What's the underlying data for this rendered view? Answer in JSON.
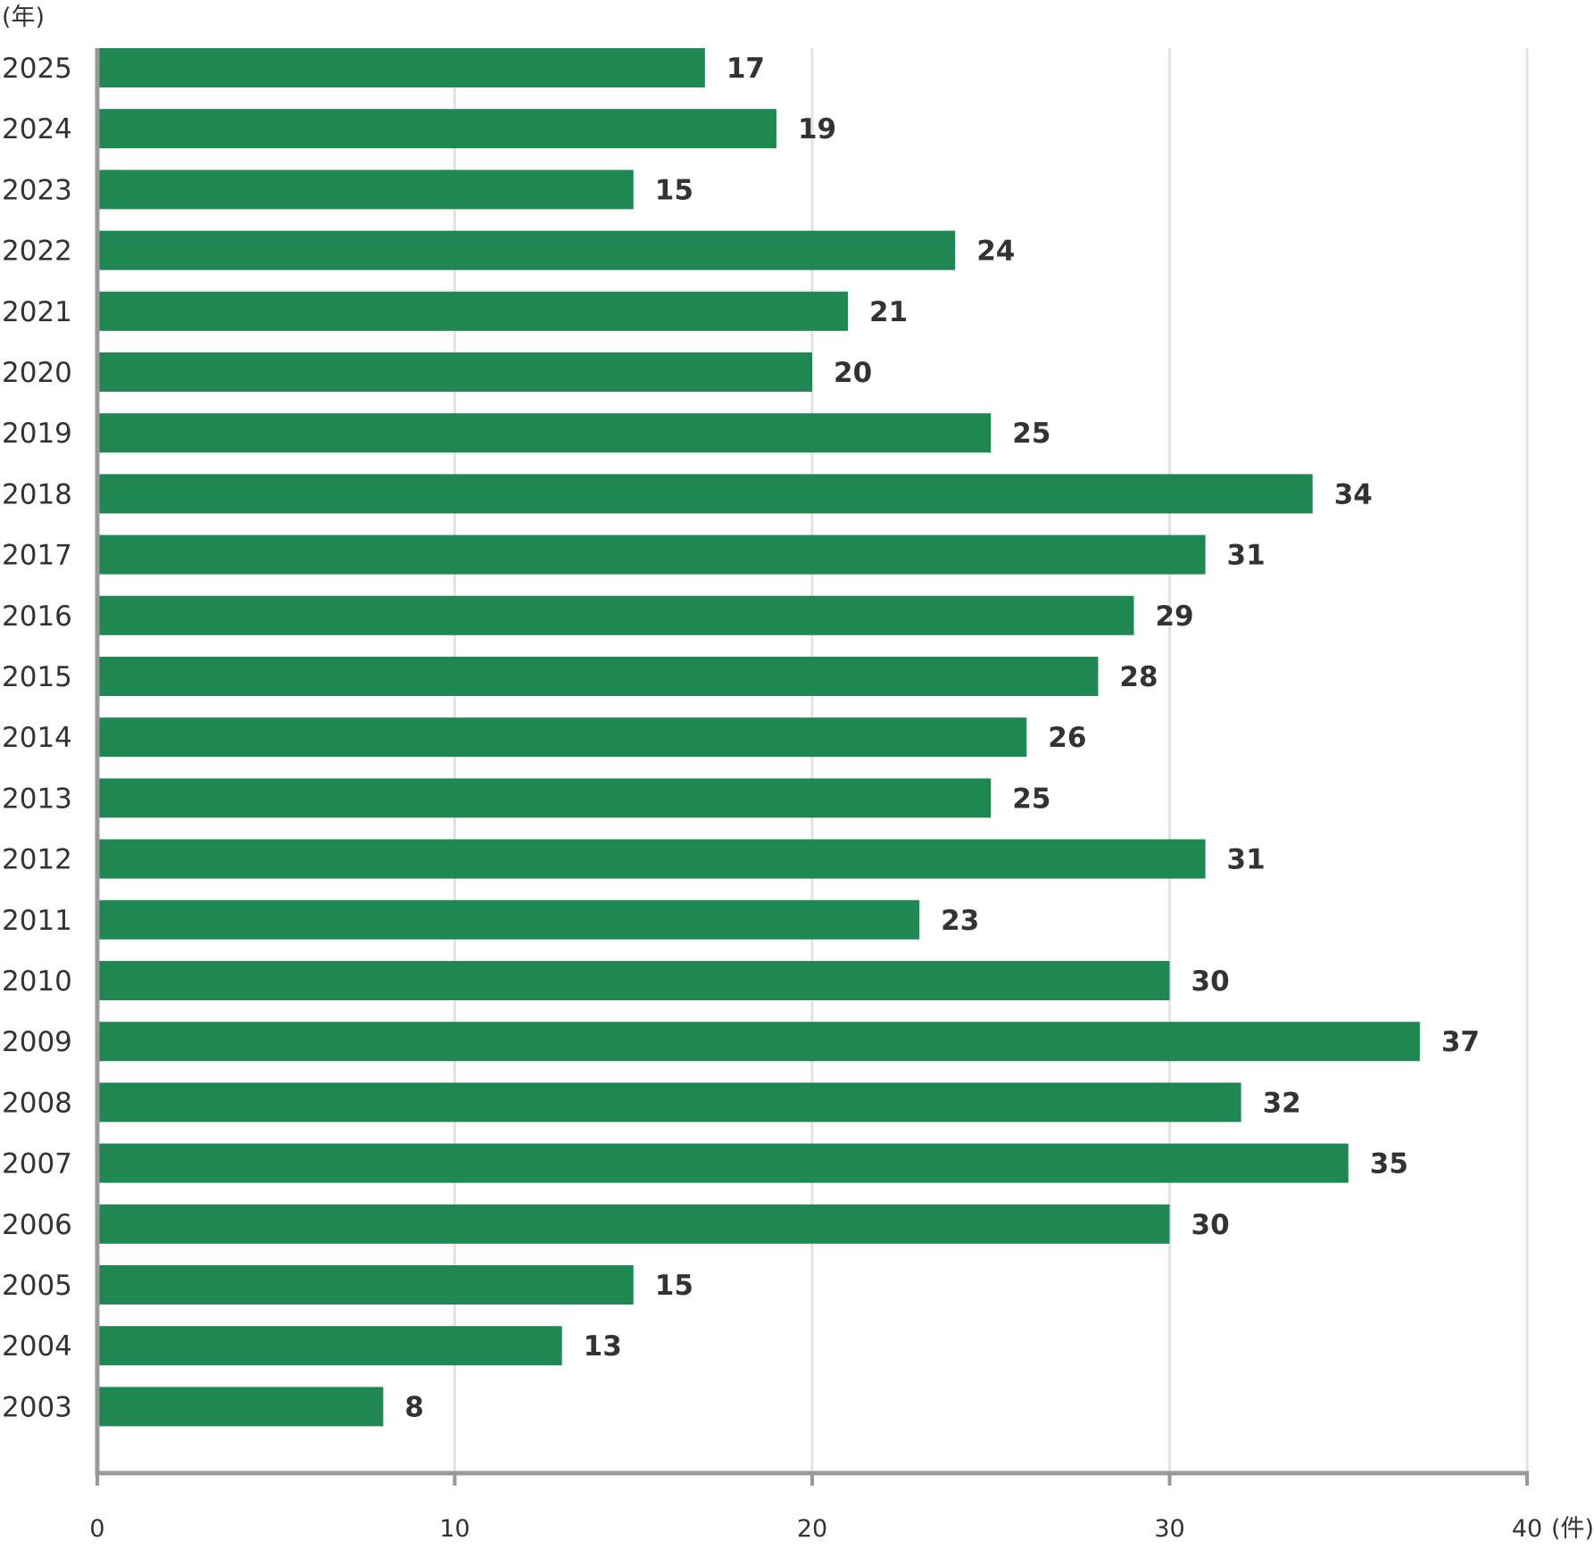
{
  "chart_data": {
    "type": "bar",
    "orientation": "horizontal",
    "y_unit_label": "(年)",
    "x_unit_label": "(件)",
    "categories": [
      "2025",
      "2024",
      "2023",
      "2022",
      "2021",
      "2020",
      "2019",
      "2018",
      "2017",
      "2016",
      "2015",
      "2014",
      "2013",
      "2012",
      "2011",
      "2010",
      "2009",
      "2008",
      "2007",
      "2006",
      "2005",
      "2004",
      "2003"
    ],
    "values": [
      17,
      19,
      15,
      24,
      21,
      20,
      25,
      34,
      31,
      29,
      28,
      26,
      25,
      31,
      23,
      30,
      37,
      32,
      35,
      30,
      15,
      13,
      8
    ],
    "value_labels": [
      "17",
      "19",
      "15",
      "24",
      "21",
      "20",
      "25",
      "34",
      "31",
      "29",
      "28",
      "26",
      "25",
      "31",
      "23",
      "30",
      "37",
      "32",
      "35",
      "30",
      "15",
      "13",
      "8"
    ],
    "xlim": [
      0,
      40
    ],
    "x_ticks": [
      0,
      10,
      20,
      30,
      40
    ],
    "x_tick_labels": [
      "0",
      "10",
      "20",
      "30",
      "40"
    ],
    "grid": true,
    "legend": "none",
    "bar_color": "#1e8752",
    "axis_color": "#999999",
    "grid_color": "#e3e3e3",
    "text_color": "#333333"
  }
}
